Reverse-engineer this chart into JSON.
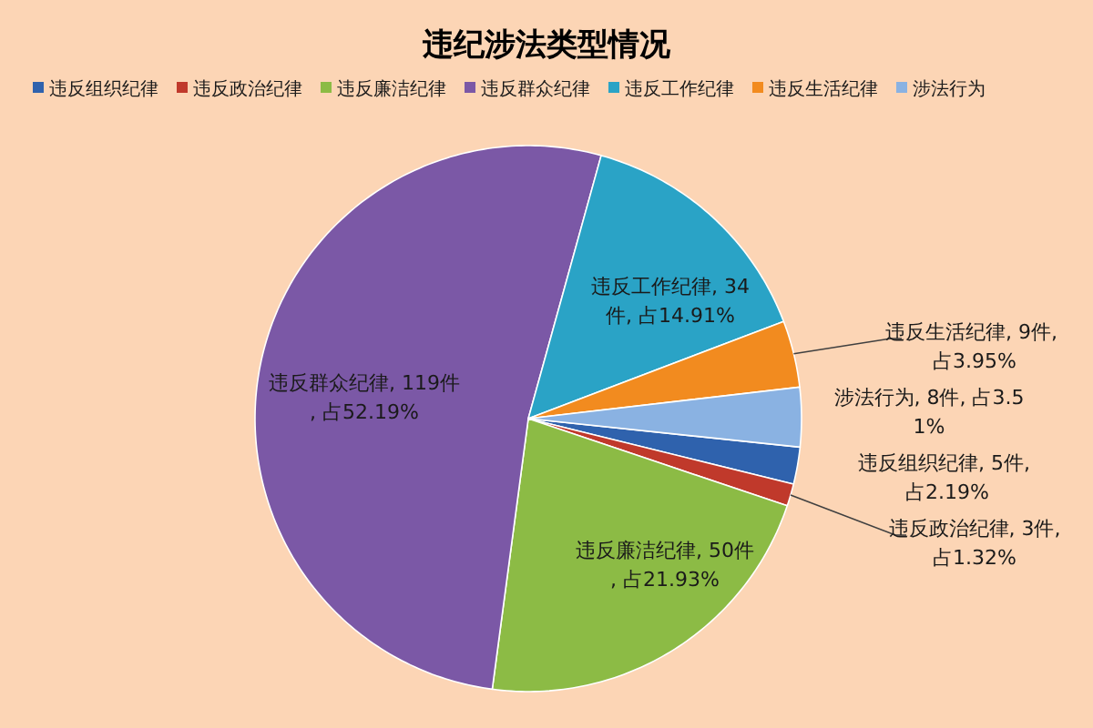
{
  "chart_data": {
    "type": "pie",
    "title": "违纪涉法类型情况",
    "categories": [
      "违反组织纪律",
      "违反政治纪律",
      "违反廉洁纪律",
      "违反群众纪律",
      "违反工作纪律",
      "违反生活纪律",
      "涉法行为"
    ],
    "values": [
      5,
      3,
      50,
      119,
      34,
      9,
      8
    ],
    "colors": [
      "#2f62ad",
      "#c0392b",
      "#8cbb45",
      "#7b58a6",
      "#2aa3c6",
      "#f28b1f",
      "#8ab2e2"
    ],
    "value_labels": [
      "违反组织纪律, 5件, 占2.19%",
      "违反政治纪律, 3件, 占1.32%",
      "违反廉洁纪律, 50件, 占21.93%",
      "违反群众纪律, 119件, 占52.19%",
      "违反工作纪律, 34件, 占14.91%",
      "违反生活纪律, 9件, 占3.95%",
      "涉法行为, 8件, 占3.51%"
    ],
    "legend": "top"
  }
}
